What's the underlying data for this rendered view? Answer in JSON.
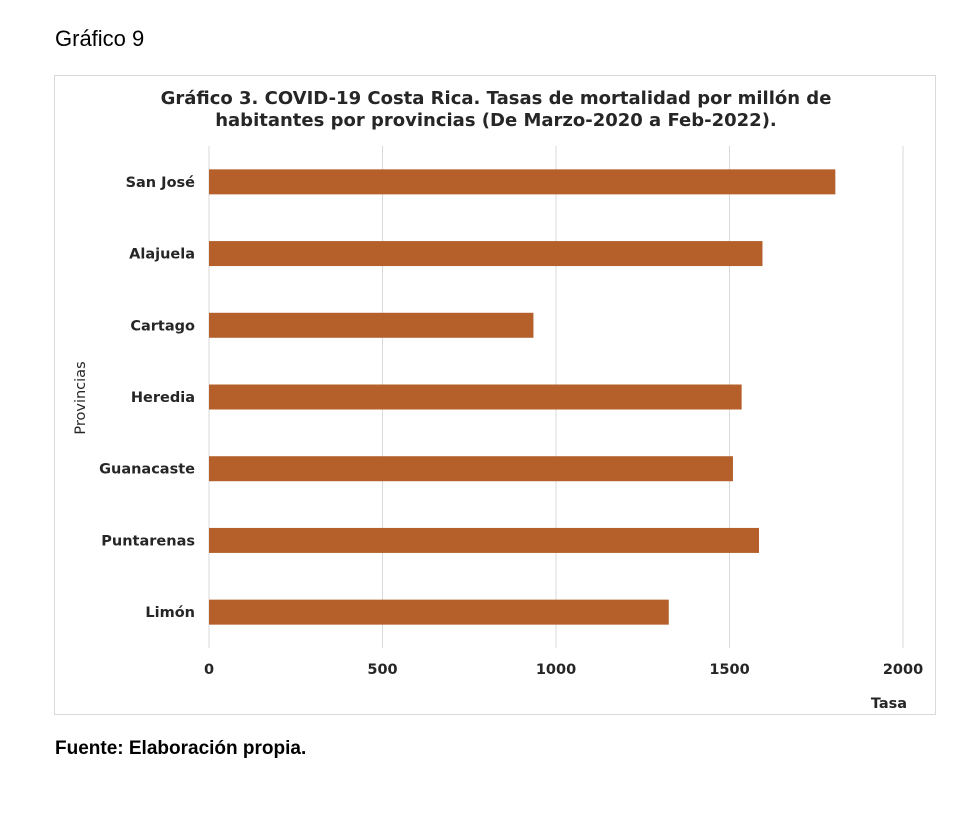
{
  "page": {
    "heading": "Gráfico 9",
    "source": "Fuente: Elaboración propia."
  },
  "chart_data": {
    "type": "bar",
    "orientation": "horizontal",
    "title_lines": [
      "Gráfico 3. COVID-19 Costa Rica. Tasas de mortalidad por millón de",
      "habitantes por provincias (De Marzo-2020 a Feb-2022)."
    ],
    "xlabel": "Tasa",
    "ylabel": "Provincias",
    "categories": [
      "San José",
      "Alajuela",
      "Cartago",
      "Heredia",
      "Guanacaste",
      "Puntarenas",
      "Limón"
    ],
    "values": [
      1805,
      1595,
      935,
      1535,
      1510,
      1585,
      1325
    ],
    "xlim": [
      0,
      2000
    ],
    "xticks": [
      0,
      500,
      1000,
      1500,
      2000
    ],
    "xtick_labels": [
      "0",
      "500",
      "1000",
      "1500",
      "2000"
    ],
    "grid": "vertical",
    "legend": "none",
    "colors": {
      "bar": "#B5602B",
      "grid": "#d9d9d9"
    }
  }
}
